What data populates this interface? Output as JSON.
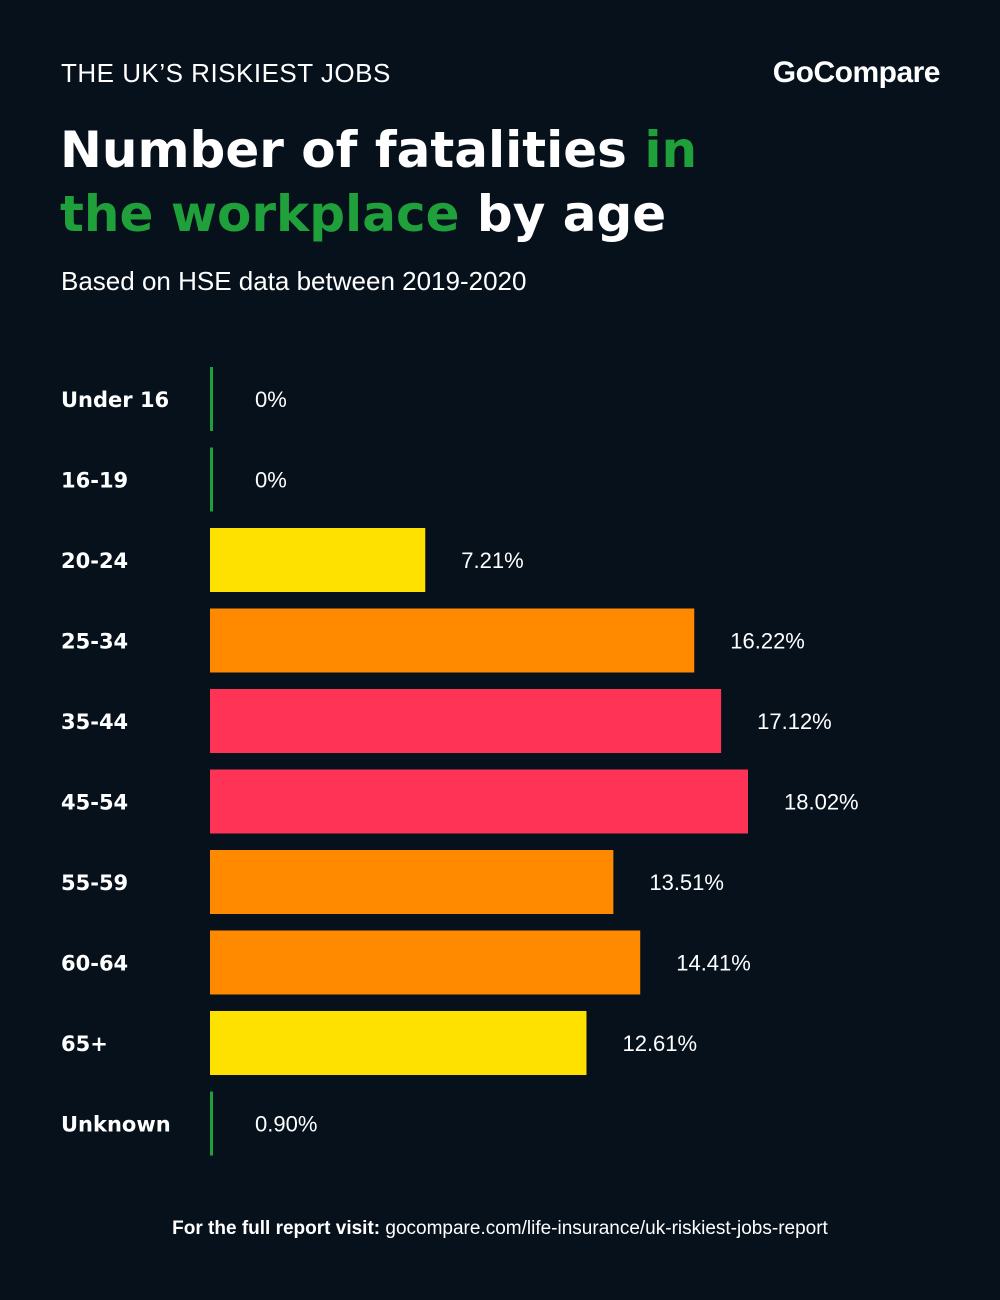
{
  "header": {
    "kicker": "THE UK’S RISKIEST JOBS",
    "logo": "GoCompare",
    "title_part1": "Number of fatalities ",
    "title_highlight": "in the workplace",
    "title_part2": " by age",
    "subtitle": "Based on HSE data between 2019-2020"
  },
  "footer": {
    "lead": "For the full report visit:",
    "url": "gocompare.com/life-insurance/uk-riskiest-jobs-report"
  },
  "colors": {
    "background": "#06111c",
    "green": "#1fa03a",
    "yellow": "#ffe100",
    "orange": "#ff8a00",
    "red": "#ff3355"
  },
  "chart_data": {
    "type": "bar",
    "orientation": "horizontal",
    "categories": [
      "Under 16",
      "16-19",
      "20-24",
      "25-34",
      "35-44",
      "45-54",
      "55-59",
      "60-64",
      "65+",
      "Unknown"
    ],
    "values": [
      0,
      0,
      7.21,
      16.22,
      17.12,
      18.02,
      13.51,
      14.41,
      12.61,
      0.9
    ],
    "value_labels": [
      "0%",
      "0%",
      "7.21%",
      "16.22%",
      "17.12%",
      "18.02%",
      "13.51%",
      "14.41%",
      "12.61%",
      "0.90%"
    ],
    "bar_colors": [
      "green",
      "green",
      "yellow",
      "orange",
      "red",
      "red",
      "orange",
      "orange",
      "yellow",
      "green"
    ],
    "title": "",
    "xlabel": "",
    "ylabel": "",
    "xlim": [
      0,
      18.02
    ],
    "grid": false,
    "legend": "none"
  }
}
